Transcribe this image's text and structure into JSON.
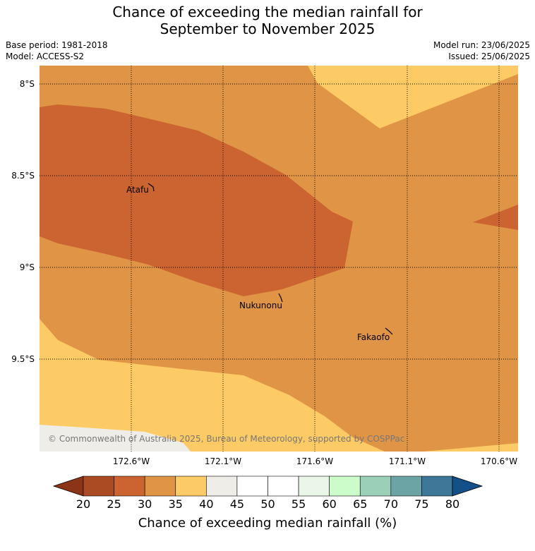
{
  "title": {
    "line1": "Chance of exceeding the median rainfall for",
    "line2": "September to November 2025"
  },
  "meta": {
    "base_period": "Base period: 1981-2018",
    "model": "Model: ACCESS-S2",
    "model_run": "Model run: 23/06/2025",
    "issued": "Issued: 25/06/2025"
  },
  "map": {
    "lat_ticks": [
      "8°S",
      "8.5°S",
      "9°S",
      "9.5°S"
    ],
    "lon_ticks": [
      "172.6°W",
      "172.1°W",
      "171.6°W",
      "171.1°W",
      "170.6°W"
    ],
    "places": [
      {
        "name": "Atafu"
      },
      {
        "name": "Nukunonu"
      },
      {
        "name": "Fakaofo"
      }
    ],
    "copyright": "© Commonwealth of Australia 2025, Bureau of Meteorology, supported by COSPPac",
    "colors": {
      "c25_30": "#cb6431",
      "c30_35": "#e09445",
      "c35_40": "#fdcb65",
      "c40_45": "#efede8"
    }
  },
  "colorbar": {
    "title": "Chance of exceeding median rainfall (%)",
    "ticks": [
      "20",
      "25",
      "30",
      "35",
      "40",
      "45",
      "50",
      "55",
      "60",
      "65",
      "70",
      "75",
      "80"
    ],
    "colors": [
      "#ab4b23",
      "#cb6431",
      "#e09445",
      "#fdcb65",
      "#efede8",
      "#ffffff",
      "#ffffff",
      "#eaf6e8",
      "#cbfcca",
      "#9ccfb7",
      "#6ca3a5",
      "#3d7899"
    ],
    "under_color": "#8c3418",
    "over_color": "#134f88"
  }
}
